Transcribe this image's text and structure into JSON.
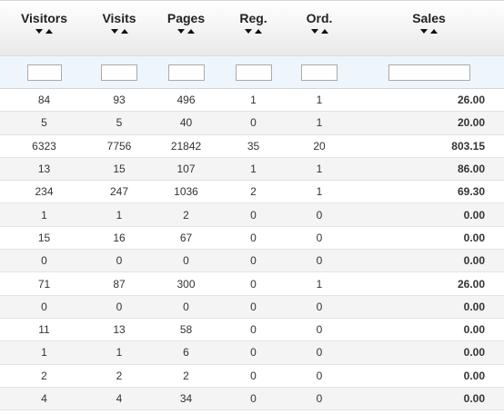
{
  "columns": [
    {
      "label": "Visitors"
    },
    {
      "label": "Visits"
    },
    {
      "label": "Pages"
    },
    {
      "label": "Reg."
    },
    {
      "label": "Ord."
    },
    {
      "label": "Sales"
    }
  ],
  "filters": [
    "",
    "",
    "",
    "",
    "",
    ""
  ],
  "rows": [
    [
      "84",
      "93",
      "496",
      "1",
      "1",
      "26.00"
    ],
    [
      "5",
      "5",
      "40",
      "0",
      "1",
      "20.00"
    ],
    [
      "6323",
      "7756",
      "21842",
      "35",
      "20",
      "803.15"
    ],
    [
      "13",
      "15",
      "107",
      "1",
      "1",
      "86.00"
    ],
    [
      "234",
      "247",
      "1036",
      "2",
      "1",
      "69.30"
    ],
    [
      "1",
      "1",
      "2",
      "0",
      "0",
      "0.00"
    ],
    [
      "15",
      "16",
      "67",
      "0",
      "0",
      "0.00"
    ],
    [
      "0",
      "0",
      "0",
      "0",
      "0",
      "0.00"
    ],
    [
      "71",
      "87",
      "300",
      "0",
      "1",
      "26.00"
    ],
    [
      "0",
      "0",
      "0",
      "0",
      "0",
      "0.00"
    ],
    [
      "11",
      "13",
      "58",
      "0",
      "0",
      "0.00"
    ],
    [
      "1",
      "1",
      "6",
      "0",
      "0",
      "0.00"
    ],
    [
      "2",
      "2",
      "2",
      "0",
      "0",
      "0.00"
    ],
    [
      "4",
      "4",
      "34",
      "0",
      "0",
      "0.00"
    ]
  ]
}
